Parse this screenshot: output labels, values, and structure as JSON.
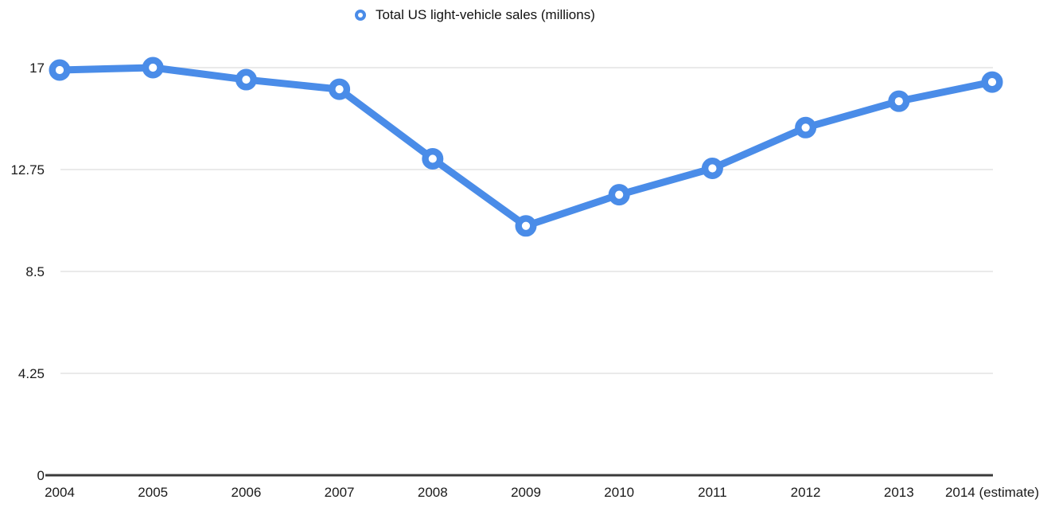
{
  "legend": {
    "label": "Total US light-vehicle sales (millions)"
  },
  "chart_data": {
    "type": "line",
    "title": "",
    "xlabel": "",
    "ylabel": "",
    "categories": [
      "2004",
      "2005",
      "2006",
      "2007",
      "2008",
      "2009",
      "2010",
      "2011",
      "2012",
      "2013",
      "2014 (estimate)"
    ],
    "series": [
      {
        "name": "Total US light-vehicle sales (millions)",
        "values": [
          16.9,
          17.0,
          16.5,
          16.1,
          13.2,
          10.4,
          11.7,
          12.8,
          14.5,
          15.6,
          16.4
        ]
      }
    ],
    "ylim": [
      0,
      17
    ],
    "yticks": [
      0,
      4.25,
      8.5,
      12.75,
      17
    ],
    "ytick_labels": [
      "0",
      "4.25",
      "8.5",
      "12.75",
      "17"
    ],
    "grid": "horizontal-only",
    "legend_position": "top-center",
    "marker": "ring",
    "colors": {
      "series": "#4a8ce8",
      "grid": "#e3e3e3",
      "axis": "#3a3a3a",
      "text": "#1a1a1a",
      "background": "#ffffff",
      "marker_fill": "#ffffff"
    }
  }
}
